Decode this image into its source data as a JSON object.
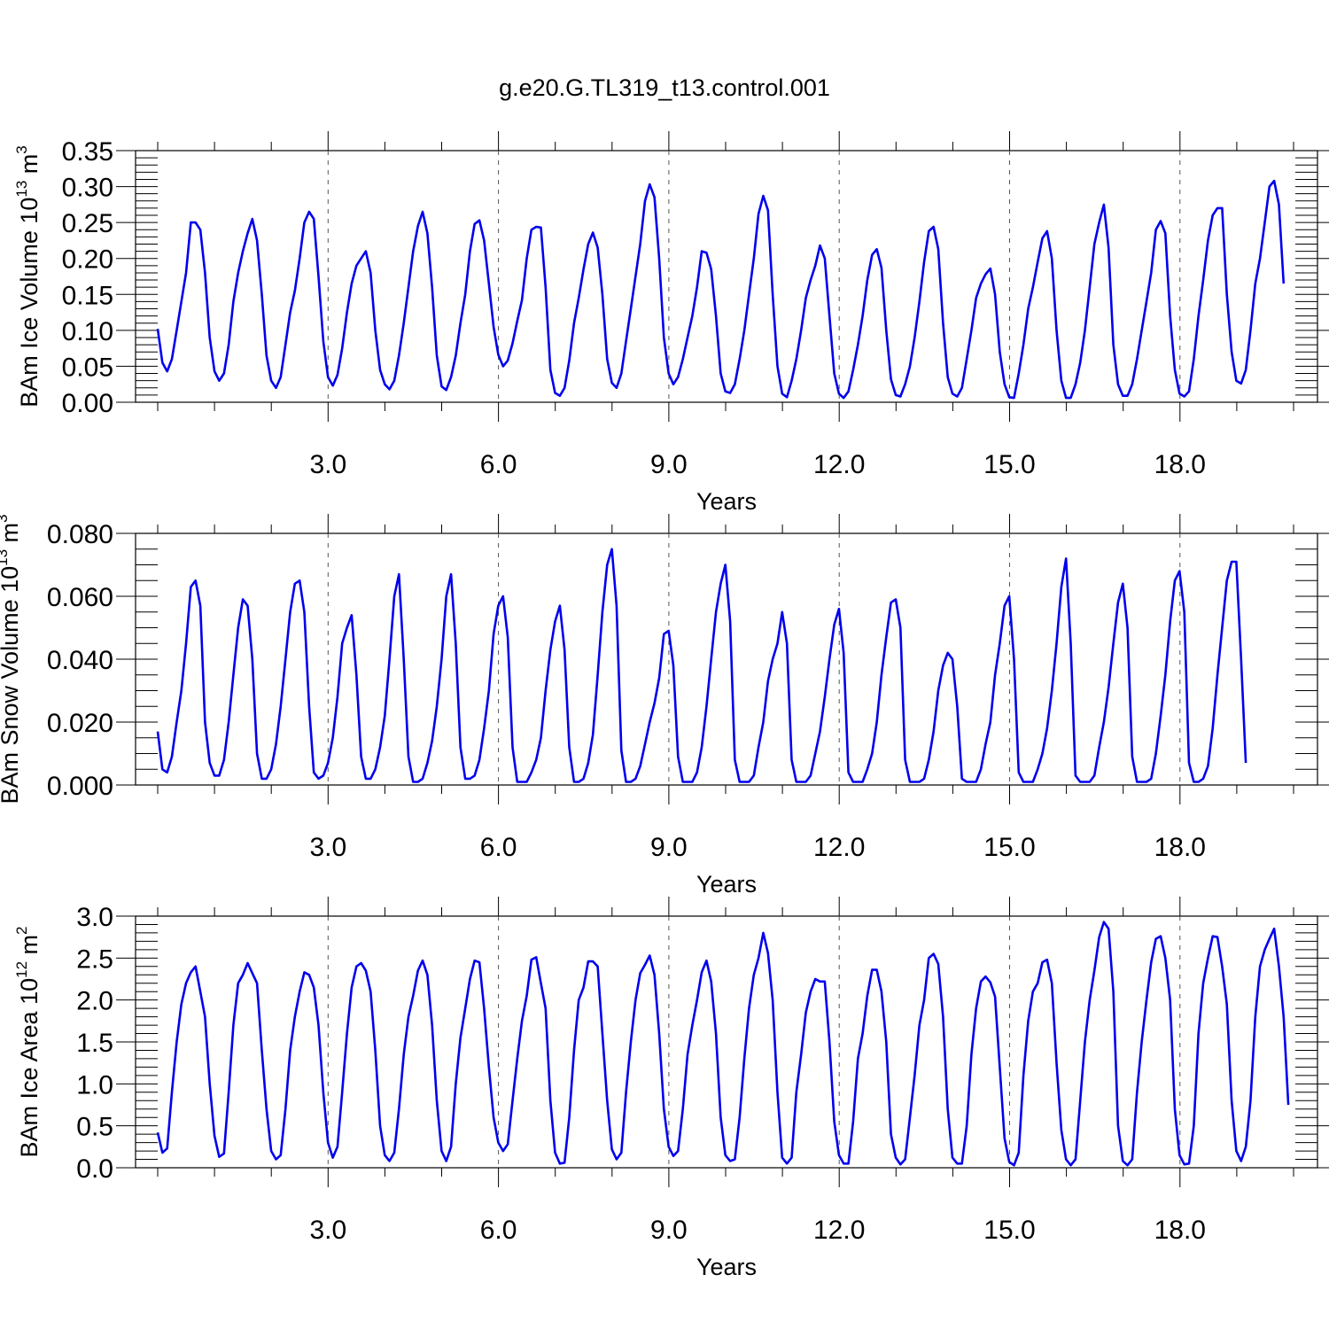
{
  "figure": {
    "title": "g.e20.G.TL319_t13.control.001"
  },
  "chart_data": [
    {
      "type": "line",
      "name": "ice-volume",
      "title": "",
      "xlabel": "Years",
      "ylabel": "BAm Ice Volume 10",
      "ylabel_exp": "13",
      "ylabel_unit": " m",
      "ylabel_unit_exp": "3",
      "xlim": [
        0.0,
        20.0
      ],
      "ylim": [
        0.0,
        0.35
      ],
      "x_ticks": [
        3.0,
        6.0,
        9.0,
        12.0,
        15.0,
        18.0
      ],
      "x_tick_labels": [
        "3.0",
        "6.0",
        "9.0",
        "12.0",
        "15.0",
        "18.0"
      ],
      "y_ticks": [
        0.0,
        0.05,
        0.1,
        0.15,
        0.2,
        0.25,
        0.3,
        0.35
      ],
      "y_tick_labels": [
        "0.00",
        "0.05",
        "0.10",
        "0.15",
        "0.20",
        "0.25",
        "0.30",
        "0.35"
      ],
      "y_minor_step": 0.01,
      "grid": "vertical dashed at major x ticks",
      "color": "#0000ee",
      "x_start": 0.0,
      "x_step": 0.0833,
      "values": [
        0.102,
        0.055,
        0.043,
        0.06,
        0.1,
        0.14,
        0.18,
        0.25,
        0.25,
        0.24,
        0.18,
        0.09,
        0.043,
        0.03,
        0.04,
        0.08,
        0.14,
        0.18,
        0.21,
        0.235,
        0.255,
        0.225,
        0.15,
        0.065,
        0.03,
        0.02,
        0.035,
        0.08,
        0.125,
        0.155,
        0.2,
        0.25,
        0.265,
        0.255,
        0.175,
        0.085,
        0.035,
        0.023,
        0.038,
        0.075,
        0.125,
        0.165,
        0.19,
        0.2,
        0.21,
        0.18,
        0.1,
        0.045,
        0.025,
        0.018,
        0.03,
        0.065,
        0.11,
        0.16,
        0.21,
        0.245,
        0.265,
        0.235,
        0.16,
        0.065,
        0.022,
        0.017,
        0.035,
        0.065,
        0.11,
        0.15,
        0.21,
        0.248,
        0.253,
        0.225,
        0.165,
        0.105,
        0.066,
        0.05,
        0.058,
        0.082,
        0.113,
        0.142,
        0.2,
        0.24,
        0.244,
        0.243,
        0.16,
        0.045,
        0.013,
        0.009,
        0.02,
        0.058,
        0.11,
        0.145,
        0.185,
        0.22,
        0.236,
        0.215,
        0.15,
        0.06,
        0.027,
        0.02,
        0.04,
        0.085,
        0.13,
        0.175,
        0.22,
        0.28,
        0.303,
        0.285,
        0.2,
        0.09,
        0.04,
        0.025,
        0.035,
        0.06,
        0.09,
        0.12,
        0.16,
        0.21,
        0.208,
        0.185,
        0.12,
        0.04,
        0.015,
        0.013,
        0.025,
        0.06,
        0.1,
        0.15,
        0.2,
        0.262,
        0.287,
        0.267,
        0.15,
        0.05,
        0.012,
        0.007,
        0.03,
        0.06,
        0.1,
        0.145,
        0.17,
        0.19,
        0.218,
        0.2,
        0.12,
        0.04,
        0.012,
        0.006,
        0.015,
        0.045,
        0.08,
        0.12,
        0.17,
        0.205,
        0.213,
        0.187,
        0.1,
        0.032,
        0.01,
        0.008,
        0.025,
        0.05,
        0.09,
        0.14,
        0.195,
        0.238,
        0.244,
        0.213,
        0.11,
        0.035,
        0.012,
        0.008,
        0.02,
        0.06,
        0.1,
        0.145,
        0.165,
        0.178,
        0.186,
        0.15,
        0.07,
        0.025,
        0.007,
        0.006,
        0.04,
        0.08,
        0.13,
        0.16,
        0.195,
        0.228,
        0.238,
        0.2,
        0.1,
        0.03,
        0.006,
        0.006,
        0.025,
        0.055,
        0.1,
        0.16,
        0.22,
        0.25,
        0.275,
        0.215,
        0.08,
        0.025,
        0.009,
        0.009,
        0.025,
        0.06,
        0.1,
        0.14,
        0.18,
        0.24,
        0.252,
        0.235,
        0.12,
        0.045,
        0.012,
        0.008,
        0.015,
        0.06,
        0.12,
        0.17,
        0.225,
        0.26,
        0.27,
        0.27,
        0.15,
        0.07,
        0.03,
        0.026,
        0.045,
        0.1,
        0.165,
        0.2,
        0.25,
        0.3,
        0.308,
        0.275,
        0.165
      ]
    },
    {
      "type": "line",
      "name": "snow-volume",
      "title": "",
      "xlabel": "Years",
      "ylabel": "BAm Snow Volume 10",
      "ylabel_exp": "13",
      "ylabel_unit": " m",
      "ylabel_unit_exp": "3",
      "xlim": [
        0.0,
        20.0
      ],
      "ylim": [
        0.0,
        0.08
      ],
      "x_ticks": [
        3.0,
        6.0,
        9.0,
        12.0,
        15.0,
        18.0
      ],
      "x_tick_labels": [
        "3.0",
        "6.0",
        "9.0",
        "12.0",
        "15.0",
        "18.0"
      ],
      "y_ticks": [
        0.0,
        0.02,
        0.04,
        0.06,
        0.08
      ],
      "y_tick_labels": [
        "0.000",
        "0.020",
        "0.040",
        "0.060",
        "0.080"
      ],
      "y_minor_step": 0.005,
      "grid": "vertical dashed at major x ticks",
      "color": "#0000ee",
      "x_start": 0.0,
      "x_step": 0.0833,
      "values": [
        0.017,
        0.005,
        0.004,
        0.009,
        0.02,
        0.03,
        0.045,
        0.063,
        0.065,
        0.057,
        0.02,
        0.007,
        0.003,
        0.003,
        0.008,
        0.02,
        0.035,
        0.05,
        0.059,
        0.057,
        0.04,
        0.01,
        0.002,
        0.002,
        0.005,
        0.013,
        0.025,
        0.04,
        0.055,
        0.064,
        0.065,
        0.055,
        0.025,
        0.004,
        0.002,
        0.003,
        0.007,
        0.015,
        0.028,
        0.045,
        0.05,
        0.054,
        0.035,
        0.009,
        0.002,
        0.002,
        0.005,
        0.012,
        0.022,
        0.04,
        0.06,
        0.067,
        0.04,
        0.009,
        0.001,
        0.001,
        0.002,
        0.007,
        0.014,
        0.025,
        0.04,
        0.06,
        0.067,
        0.045,
        0.012,
        0.002,
        0.002,
        0.003,
        0.008,
        0.018,
        0.03,
        0.048,
        0.057,
        0.06,
        0.047,
        0.012,
        0.001,
        0.001,
        0.001,
        0.004,
        0.008,
        0.015,
        0.03,
        0.043,
        0.052,
        0.057,
        0.043,
        0.012,
        0.001,
        0.001,
        0.002,
        0.007,
        0.016,
        0.035,
        0.055,
        0.07,
        0.075,
        0.057,
        0.011,
        0.001,
        0.001,
        0.002,
        0.006,
        0.013,
        0.02,
        0.026,
        0.034,
        0.048,
        0.049,
        0.038,
        0.009,
        0.001,
        0.001,
        0.001,
        0.004,
        0.012,
        0.025,
        0.04,
        0.055,
        0.064,
        0.07,
        0.052,
        0.008,
        0.001,
        0.001,
        0.001,
        0.003,
        0.012,
        0.02,
        0.033,
        0.04,
        0.045,
        0.055,
        0.045,
        0.008,
        0.001,
        0.001,
        0.001,
        0.003,
        0.01,
        0.017,
        0.028,
        0.04,
        0.051,
        0.056,
        0.042,
        0.004,
        0.001,
        0.001,
        0.001,
        0.005,
        0.01,
        0.02,
        0.035,
        0.047,
        0.058,
        0.059,
        0.05,
        0.008,
        0.001,
        0.001,
        0.001,
        0.002,
        0.008,
        0.017,
        0.03,
        0.038,
        0.042,
        0.04,
        0.025,
        0.002,
        0.001,
        0.001,
        0.001,
        0.005,
        0.013,
        0.02,
        0.035,
        0.045,
        0.057,
        0.06,
        0.04,
        0.004,
        0.001,
        0.001,
        0.001,
        0.005,
        0.01,
        0.018,
        0.03,
        0.045,
        0.063,
        0.072,
        0.045,
        0.003,
        0.001,
        0.001,
        0.001,
        0.003,
        0.012,
        0.02,
        0.031,
        0.045,
        0.058,
        0.064,
        0.05,
        0.009,
        0.001,
        0.001,
        0.001,
        0.002,
        0.01,
        0.022,
        0.035,
        0.052,
        0.065,
        0.068,
        0.055,
        0.007,
        0.001,
        0.001,
        0.002,
        0.006,
        0.018,
        0.035,
        0.05,
        0.065,
        0.071,
        0.071,
        0.04,
        0.007
      ]
    },
    {
      "type": "line",
      "name": "ice-area",
      "title": "",
      "xlabel": "Years",
      "ylabel": "BAm Ice Area 10",
      "ylabel_exp": "12",
      "ylabel_unit": " m",
      "ylabel_unit_exp": "2",
      "xlim": [
        0.0,
        20.0
      ],
      "ylim": [
        0.0,
        3.0
      ],
      "x_ticks": [
        3.0,
        6.0,
        9.0,
        12.0,
        15.0,
        18.0
      ],
      "x_tick_labels": [
        "3.0",
        "6.0",
        "9.0",
        "12.0",
        "15.0",
        "18.0"
      ],
      "y_ticks": [
        0.0,
        0.5,
        1.0,
        1.5,
        2.0,
        2.5,
        3.0
      ],
      "y_tick_labels": [
        "0.0",
        "0.5",
        "1.0",
        "1.5",
        "2.0",
        "2.5",
        "3.0"
      ],
      "y_minor_step": 0.1,
      "grid": "vertical dashed at major x ticks",
      "color": "#0000ee",
      "x_start": 0.0,
      "x_step": 0.0833,
      "values": [
        0.42,
        0.18,
        0.23,
        0.9,
        1.5,
        1.95,
        2.2,
        2.33,
        2.4,
        2.1,
        1.8,
        1.0,
        0.38,
        0.13,
        0.17,
        0.9,
        1.7,
        2.2,
        2.3,
        2.44,
        2.32,
        2.2,
        1.4,
        0.7,
        0.2,
        0.1,
        0.15,
        0.7,
        1.4,
        1.8,
        2.1,
        2.33,
        2.3,
        2.15,
        1.7,
        0.9,
        0.3,
        0.12,
        0.25,
        0.9,
        1.6,
        2.15,
        2.4,
        2.44,
        2.35,
        2.1,
        1.4,
        0.5,
        0.15,
        0.08,
        0.18,
        0.7,
        1.35,
        1.8,
        2.05,
        2.35,
        2.47,
        2.3,
        1.7,
        0.8,
        0.2,
        0.08,
        0.25,
        1.0,
        1.55,
        1.9,
        2.25,
        2.47,
        2.45,
        1.9,
        1.2,
        0.6,
        0.3,
        0.2,
        0.28,
        0.8,
        1.3,
        1.75,
        2.05,
        2.48,
        2.51,
        2.2,
        1.9,
        0.8,
        0.18,
        0.05,
        0.06,
        0.6,
        1.4,
        2.0,
        2.15,
        2.46,
        2.46,
        2.4,
        1.6,
        0.8,
        0.22,
        0.1,
        0.18,
        0.9,
        1.5,
        2.0,
        2.32,
        2.42,
        2.53,
        2.3,
        1.6,
        0.7,
        0.25,
        0.14,
        0.2,
        0.7,
        1.35,
        1.7,
        2.0,
        2.33,
        2.47,
        2.22,
        1.6,
        0.6,
        0.15,
        0.08,
        0.1,
        0.6,
        1.3,
        1.9,
        2.3,
        2.5,
        2.8,
        2.56,
        2.0,
        0.9,
        0.12,
        0.05,
        0.12,
        0.9,
        1.35,
        1.85,
        2.1,
        2.25,
        2.22,
        2.22,
        1.5,
        0.55,
        0.15,
        0.05,
        0.05,
        0.55,
        1.3,
        1.6,
        2.05,
        2.36,
        2.36,
        2.1,
        1.5,
        0.4,
        0.12,
        0.04,
        0.1,
        0.6,
        1.1,
        1.7,
        2.0,
        2.5,
        2.55,
        2.43,
        1.8,
        0.7,
        0.12,
        0.05,
        0.05,
        0.5,
        1.35,
        1.9,
        2.22,
        2.28,
        2.21,
        2.04,
        1.2,
        0.35,
        0.07,
        0.03,
        0.18,
        1.1,
        1.75,
        2.1,
        2.2,
        2.45,
        2.48,
        2.2,
        1.25,
        0.45,
        0.1,
        0.03,
        0.1,
        0.8,
        1.5,
        2.0,
        2.35,
        2.75,
        2.93,
        2.85,
        2.1,
        0.5,
        0.08,
        0.03,
        0.1,
        0.9,
        1.5,
        2.0,
        2.45,
        2.73,
        2.76,
        2.5,
        2.0,
        0.7,
        0.15,
        0.04,
        0.05,
        0.5,
        1.6,
        2.2,
        2.5,
        2.76,
        2.75,
        2.4,
        1.95,
        0.8,
        0.2,
        0.08,
        0.25,
        0.8,
        1.8,
        2.4,
        2.6,
        2.73,
        2.85,
        2.4,
        1.8,
        0.75
      ]
    }
  ]
}
